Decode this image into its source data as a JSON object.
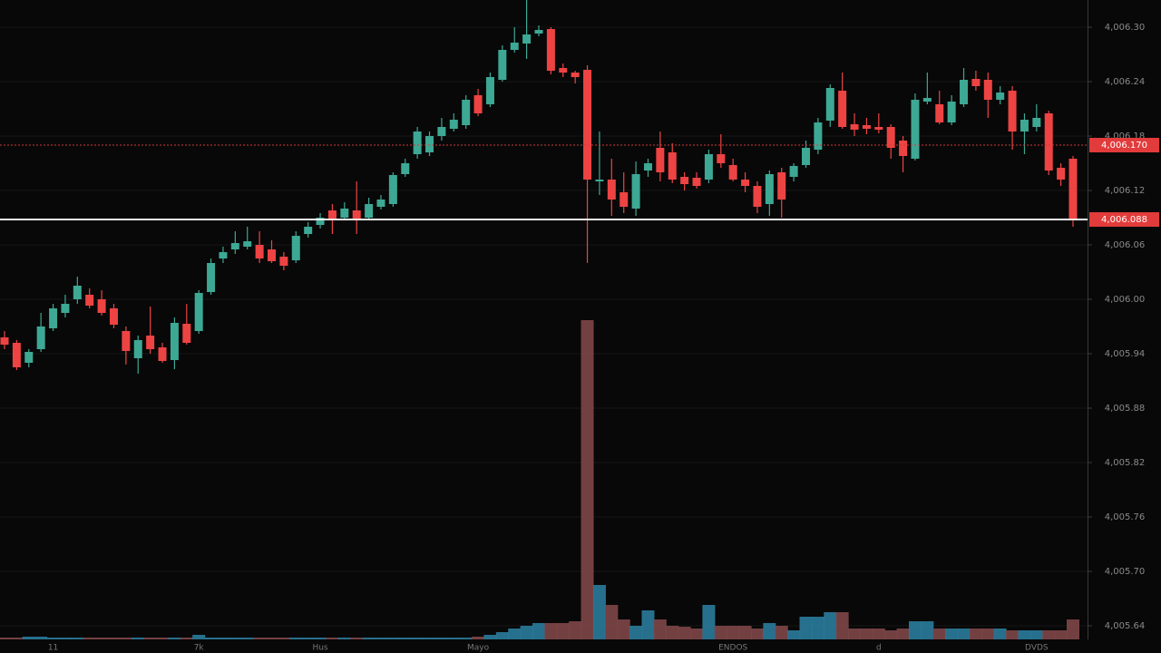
{
  "chart_data": {
    "type": "candlestick",
    "categories": [
      null,
      null,
      null,
      null,
      "11",
      null,
      null,
      null,
      null,
      null,
      null,
      null,
      null,
      null,
      null,
      null,
      "7k",
      null,
      null,
      null,
      null,
      null,
      null,
      null,
      null,
      null,
      "Hus",
      null,
      null,
      null,
      null,
      null,
      null,
      null,
      null,
      null,
      null,
      null,
      null,
      "Mayo",
      null,
      null,
      null,
      null,
      null,
      null,
      null,
      null,
      null,
      null,
      null,
      null,
      null,
      null,
      null,
      null,
      null,
      null,
      null,
      null,
      "ENDOS",
      null,
      null,
      null,
      null,
      null,
      null,
      null,
      null,
      null,
      null,
      null,
      "d",
      null,
      null,
      null,
      null,
      null,
      null,
      null,
      null,
      null,
      null,
      null,
      null,
      "DVDS",
      null,
      null,
      null
    ],
    "open": [
      4005.958,
      4005.952,
      4005.93,
      4005.945,
      4005.968,
      4005.985,
      4006.0,
      4006.005,
      4006.0,
      4005.99,
      4005.965,
      4005.935,
      4005.96,
      4005.947,
      4005.933,
      4005.973,
      4005.965,
      4006.008,
      4006.045,
      4006.055,
      4006.058,
      4006.06,
      4006.055,
      4006.047,
      4006.043,
      4006.072,
      4006.082,
      4006.098,
      4006.09,
      4006.098,
      4006.09,
      4006.102,
      4006.105,
      4006.138,
      4006.16,
      4006.162,
      4006.18,
      4006.188,
      4006.192,
      4006.225,
      4006.215,
      4006.242,
      4006.275,
      4006.282,
      4006.293,
      4006.298,
      4006.255,
      4006.25,
      4006.253,
      4006.13,
      4006.132,
      4006.118,
      4006.1,
      4006.142,
      4006.167,
      4006.162,
      4006.135,
      4006.134,
      4006.132,
      4006.16,
      4006.148,
      4006.132,
      4006.125,
      4006.105,
      4006.14,
      4006.135,
      4006.148,
      4006.165,
      4006.197,
      4006.23,
      4006.193,
      4006.192,
      4006.19,
      4006.19,
      4006.175,
      4006.155,
      4006.218,
      4006.215,
      4006.195,
      4006.215,
      4006.243,
      4006.242,
      4006.22,
      4006.23,
      4006.185,
      4006.19,
      4006.205,
      4006.145,
      4006.155
    ],
    "high": [
      4005.965,
      4005.955,
      4005.945,
      4005.985,
      4005.995,
      4006.005,
      4006.025,
      4006.012,
      4006.01,
      4005.995,
      4005.97,
      4005.96,
      4005.992,
      4005.952,
      4005.98,
      4005.995,
      4006.01,
      4006.045,
      4006.058,
      4006.075,
      4006.08,
      4006.075,
      4006.065,
      4006.052,
      4006.075,
      4006.085,
      4006.095,
      4006.105,
      4006.107,
      4006.13,
      4006.112,
      4006.115,
      4006.14,
      4006.155,
      4006.19,
      4006.185,
      4006.2,
      4006.205,
      4006.225,
      4006.232,
      4006.25,
      4006.28,
      4006.3,
      4006.33,
      4006.302,
      4006.3,
      4006.26,
      4006.252,
      4006.258,
      4006.185,
      4006.155,
      4006.14,
      4006.152,
      4006.155,
      4006.185,
      4006.172,
      4006.14,
      4006.14,
      4006.165,
      4006.182,
      4006.155,
      4006.14,
      4006.13,
      4006.142,
      4006.145,
      4006.15,
      4006.175,
      4006.2,
      4006.237,
      4006.25,
      4006.205,
      4006.2,
      4006.205,
      4006.193,
      4006.18,
      4006.227,
      4006.25,
      4006.23,
      4006.225,
      4006.255,
      4006.252,
      4006.25,
      4006.235,
      4006.235,
      4006.205,
      4006.215,
      4006.208,
      4006.15,
      4006.158
    ],
    "low": [
      4005.945,
      4005.922,
      4005.925,
      4005.942,
      4005.965,
      4005.98,
      4005.995,
      4005.99,
      4005.982,
      4005.968,
      4005.928,
      4005.918,
      4005.94,
      4005.93,
      4005.923,
      4005.95,
      4005.962,
      4006.005,
      4006.04,
      4006.05,
      4006.055,
      4006.04,
      4006.04,
      4006.032,
      4006.04,
      4006.068,
      4006.078,
      4006.072,
      4006.087,
      4006.072,
      4006.087,
      4006.099,
      4006.102,
      4006.135,
      4006.155,
      4006.158,
      4006.175,
      4006.185,
      4006.188,
      4006.202,
      4006.212,
      4006.24,
      4006.272,
      4006.265,
      4006.29,
      4006.248,
      4006.245,
      4006.238,
      4006.04,
      4006.115,
      4006.092,
      4006.095,
      4006.092,
      4006.135,
      4006.13,
      4006.128,
      4006.12,
      4006.122,
      4006.128,
      4006.145,
      4006.13,
      4006.118,
      4006.095,
      4006.092,
      4006.09,
      4006.13,
      4006.145,
      4006.16,
      4006.19,
      4006.188,
      4006.18,
      4006.182,
      4006.183,
      4006.155,
      4006.14,
      4006.153,
      4006.215,
      4006.193,
      4006.192,
      4006.212,
      4006.23,
      4006.2,
      4006.215,
      4006.165,
      4006.16,
      4006.185,
      4006.137,
      4006.125,
      4006.08
    ],
    "close": [
      4005.95,
      4005.925,
      4005.942,
      4005.97,
      4005.99,
      4005.995,
      4006.015,
      4005.993,
      4005.985,
      4005.972,
      4005.943,
      4005.955,
      4005.945,
      4005.932,
      4005.974,
      4005.952,
      4006.007,
      4006.04,
      4006.052,
      4006.062,
      4006.064,
      4006.045,
      4006.042,
      4006.037,
      4006.07,
      4006.08,
      4006.09,
      4006.088,
      4006.1,
      4006.088,
      4006.105,
      4006.11,
      4006.137,
      4006.15,
      4006.185,
      4006.18,
      4006.19,
      4006.198,
      4006.22,
      4006.205,
      4006.245,
      4006.275,
      4006.283,
      4006.292,
      4006.297,
      4006.252,
      4006.25,
      4006.245,
      4006.132,
      4006.132,
      4006.11,
      4006.102,
      4006.138,
      4006.15,
      4006.14,
      4006.132,
      4006.127,
      4006.125,
      4006.16,
      4006.15,
      4006.132,
      4006.125,
      4006.102,
      4006.138,
      4006.11,
      4006.147,
      4006.167,
      4006.195,
      4006.233,
      4006.19,
      4006.187,
      4006.188,
      4006.187,
      4006.167,
      4006.158,
      4006.22,
      4006.222,
      4006.195,
      4006.218,
      4006.242,
      4006.235,
      4006.22,
      4006.228,
      4006.185,
      4006.198,
      4006.2,
      4006.142,
      4006.132,
      4006.088
    ],
    "volume": [
      2,
      2,
      3,
      3,
      2,
      2,
      2,
      2,
      2,
      2,
      2,
      2,
      2,
      2,
      2,
      2,
      5,
      2,
      2,
      2,
      2,
      2,
      2,
      2,
      2,
      2,
      2,
      2,
      2,
      2,
      2,
      2,
      2,
      2,
      2,
      2,
      2,
      2,
      2,
      3,
      5,
      8,
      12,
      15,
      18,
      18,
      18,
      20,
      352,
      60,
      38,
      22,
      15,
      32,
      22,
      15,
      14,
      12,
      38,
      15,
      15,
      15,
      12,
      18,
      15,
      10,
      25,
      25,
      30,
      30,
      12,
      12,
      12,
      10,
      12,
      20,
      20,
      12,
      12,
      12,
      12,
      12,
      12,
      10,
      10,
      10,
      10,
      10,
      22
    ],
    "up_color": "#3da894",
    "down_color": "#ee4343",
    "volume_up_color": "#2b7c9c",
    "volume_down_color": "#7f4749",
    "ylim": [
      4005.625,
      4006.33
    ],
    "yticks": [
      {
        "value": 4006.3,
        "label": "4,006.30"
      },
      {
        "value": 4006.24,
        "label": "4,006.24"
      },
      {
        "value": 4006.18,
        "label": "4,006.18"
      },
      {
        "value": 4006.12,
        "label": "4,006.12"
      },
      {
        "value": 4006.06,
        "label": "4,006.06"
      },
      {
        "value": 4006.0,
        "label": "4,006.00"
      },
      {
        "value": 4005.94,
        "label": "4,005.94"
      },
      {
        "value": 4005.88,
        "label": "4,005.88"
      },
      {
        "value": 4005.82,
        "label": "4,005.82"
      },
      {
        "value": 4005.76,
        "label": "4,005.76"
      },
      {
        "value": 4005.7,
        "label": "4,005.70"
      },
      {
        "value": 4005.64,
        "label": "4,005.64"
      }
    ],
    "y2lim": [
      0,
      400
    ],
    "grid": true,
    "price_lines": [
      {
        "value": 4006.17,
        "label": "4,006.170",
        "color": "#d23a3a",
        "style": "dotted"
      },
      {
        "value": 4006.088,
        "label": "4,006.088",
        "color": "#f2f2f2",
        "style": "solid"
      }
    ]
  }
}
